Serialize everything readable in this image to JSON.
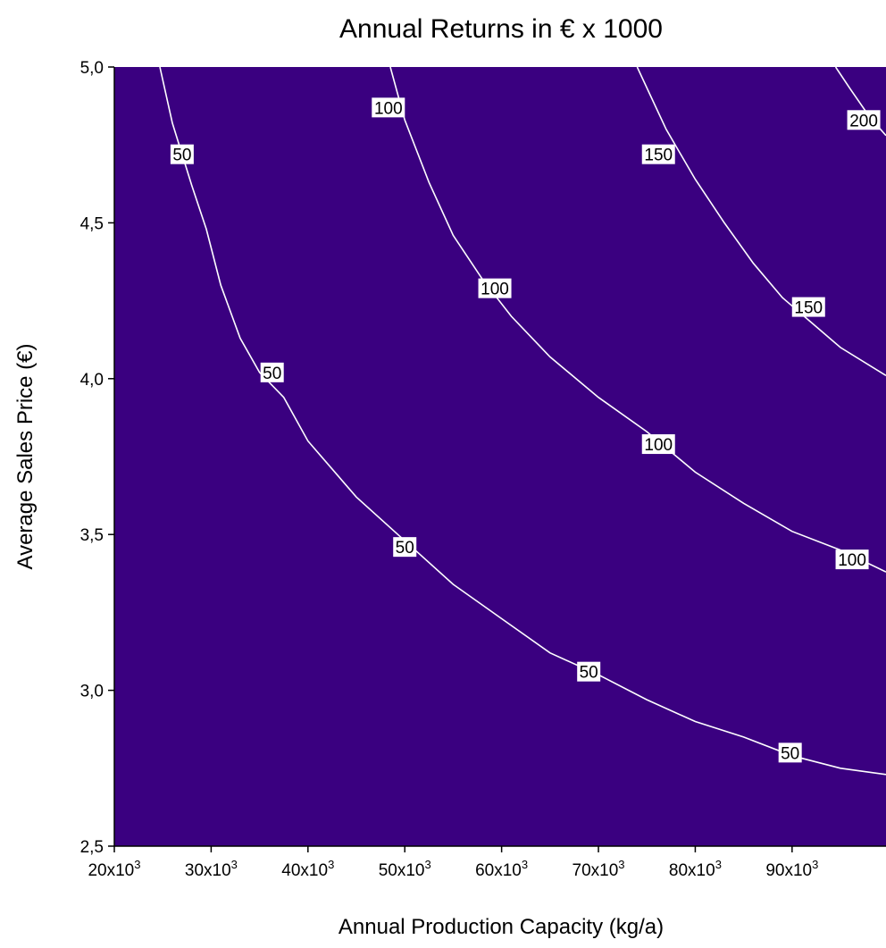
{
  "chart_data": {
    "type": "contour",
    "title": "Annual Returns in € x 1000",
    "xlabel": "Annual Production Capacity (kg/a)",
    "ylabel": "Average Sales Price (€)",
    "xlim": [
      20000,
      99700
    ],
    "ylim": [
      2.5,
      5.0
    ],
    "x_ticks": [
      {
        "value": 20000,
        "base": "20x10",
        "exp": "3"
      },
      {
        "value": 30000,
        "base": "30x10",
        "exp": "3"
      },
      {
        "value": 40000,
        "base": "40x10",
        "exp": "3"
      },
      {
        "value": 50000,
        "base": "50x10",
        "exp": "3"
      },
      {
        "value": 60000,
        "base": "60x10",
        "exp": "3"
      },
      {
        "value": 70000,
        "base": "70x10",
        "exp": "3"
      },
      {
        "value": 80000,
        "base": "80x10",
        "exp": "3"
      },
      {
        "value": 90000,
        "base": "90x10",
        "exp": "3"
      }
    ],
    "y_ticks": [
      {
        "value": 2.5,
        "label": "2,5"
      },
      {
        "value": 3.0,
        "label": "3,0"
      },
      {
        "value": 3.5,
        "label": "3,5"
      },
      {
        "value": 4.0,
        "label": "4,0"
      },
      {
        "value": 4.5,
        "label": "4,5"
      },
      {
        "value": 5.0,
        "label": "5,0"
      }
    ],
    "filled_levels": [
      -10,
      0,
      10,
      20,
      30,
      40,
      50,
      60,
      70,
      80,
      90,
      100,
      110,
      120,
      130,
      140,
      150,
      160,
      170,
      180,
      190,
      200,
      210
    ],
    "band_colors": [
      "#3a0080",
      "#300082",
      "#1f0082",
      "#110082",
      "#05007a",
      "#000084",
      "#0010a8",
      "#0020d6",
      "#0000ee",
      "#0a3cdc",
      "#0c4aa6",
      "#0a6e6a",
      "#00a020",
      "#18bc00",
      "#60d000",
      "#a8e000",
      "#e8ee00",
      "#ffee00",
      "#ffbc00",
      "#ff9600",
      "#ff7000",
      "#ff4800"
    ],
    "contour_lines": [
      {
        "level": 50,
        "label": "50",
        "points": [
          [
            24700,
            5.0
          ],
          [
            26000,
            4.82
          ],
          [
            28000,
            4.62
          ],
          [
            29500,
            4.48
          ],
          [
            31000,
            4.3
          ],
          [
            33000,
            4.13
          ],
          [
            35000,
            4.02
          ],
          [
            37500,
            3.94
          ],
          [
            40000,
            3.8
          ],
          [
            45000,
            3.62
          ],
          [
            50000,
            3.48
          ],
          [
            55000,
            3.34
          ],
          [
            60000,
            3.23
          ],
          [
            65000,
            3.12
          ],
          [
            70000,
            3.05
          ],
          [
            75000,
            2.97
          ],
          [
            80000,
            2.9
          ],
          [
            85000,
            2.85
          ],
          [
            90000,
            2.79
          ],
          [
            95000,
            2.75
          ],
          [
            99700,
            2.73
          ]
        ],
        "labels": [
          [
            27000,
            4.72
          ],
          [
            36300,
            4.02
          ],
          [
            50000,
            3.46
          ],
          [
            69000,
            3.06
          ],
          [
            89800,
            2.8
          ]
        ]
      },
      {
        "level": 100,
        "label": "100",
        "points": [
          [
            48500,
            5.0
          ],
          [
            50000,
            4.83
          ],
          [
            52500,
            4.63
          ],
          [
            55000,
            4.46
          ],
          [
            58000,
            4.32
          ],
          [
            61000,
            4.2
          ],
          [
            65000,
            4.07
          ],
          [
            70000,
            3.94
          ],
          [
            75000,
            3.83
          ],
          [
            80000,
            3.7
          ],
          [
            85000,
            3.6
          ],
          [
            90000,
            3.51
          ],
          [
            95000,
            3.45
          ],
          [
            99700,
            3.38
          ]
        ],
        "labels": [
          [
            48300,
            4.87
          ],
          [
            59300,
            4.29
          ],
          [
            76200,
            3.79
          ],
          [
            96200,
            3.42
          ]
        ]
      },
      {
        "level": 150,
        "label": "150",
        "points": [
          [
            74000,
            5.0
          ],
          [
            77000,
            4.8
          ],
          [
            80000,
            4.64
          ],
          [
            83000,
            4.5
          ],
          [
            86000,
            4.37
          ],
          [
            89000,
            4.26
          ],
          [
            92000,
            4.18
          ],
          [
            95000,
            4.1
          ],
          [
            99700,
            4.01
          ]
        ],
        "labels": [
          [
            76200,
            4.72
          ],
          [
            91700,
            4.23
          ]
        ]
      },
      {
        "level": 200,
        "label": "200",
        "points": [
          [
            94500,
            5.0
          ],
          [
            96000,
            4.93
          ],
          [
            98000,
            4.84
          ],
          [
            99700,
            4.78
          ]
        ],
        "labels": [
          [
            97400,
            4.83
          ]
        ]
      }
    ]
  }
}
